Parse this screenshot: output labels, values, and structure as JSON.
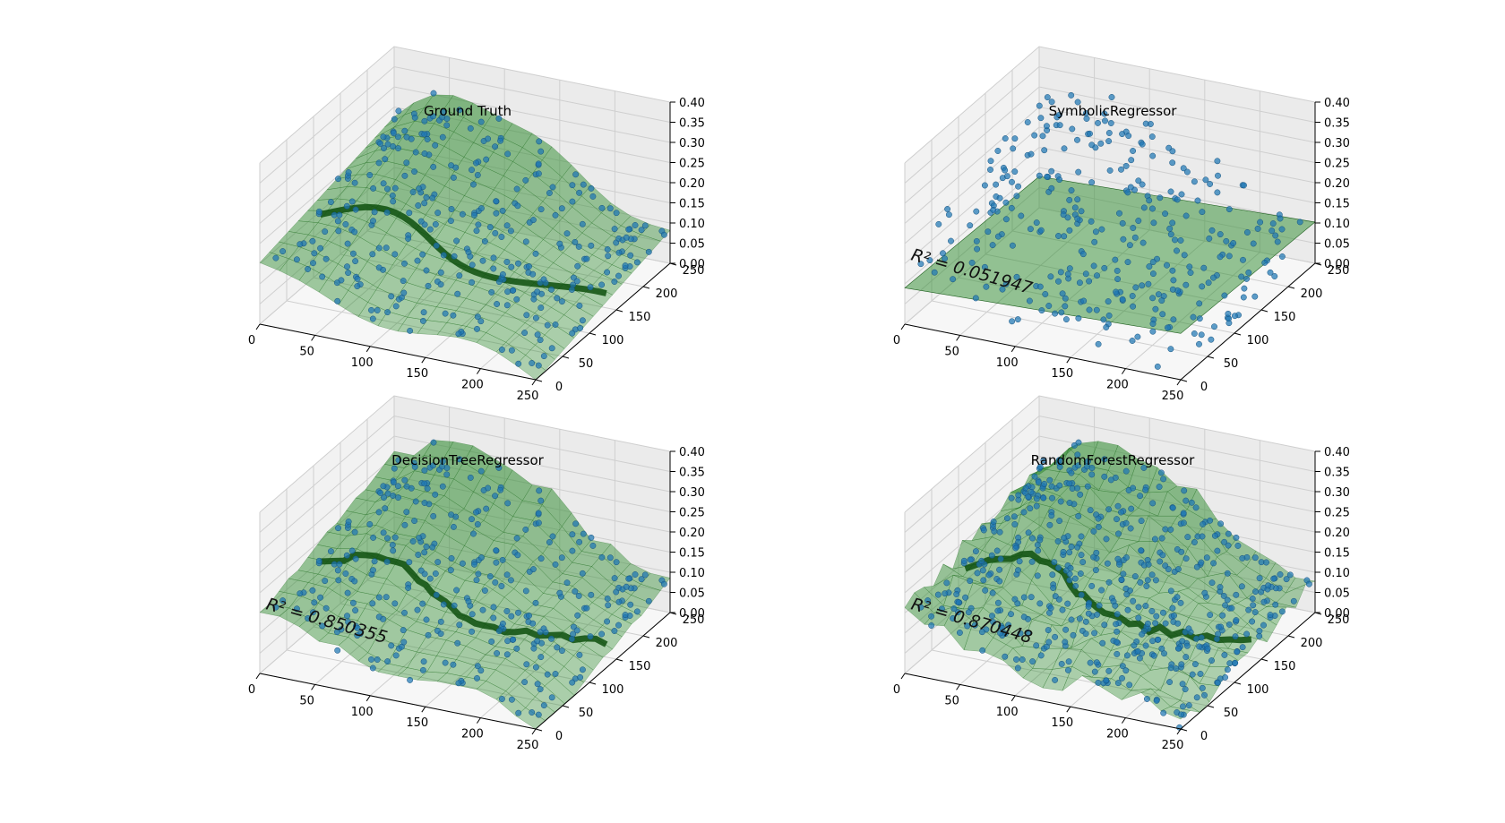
{
  "chart_data": [
    {
      "type": "scatter3d_surface",
      "title": "Ground Truth",
      "annotation": "",
      "x_ticks": [
        "0",
        "50",
        "100",
        "150",
        "200",
        "250"
      ],
      "y_ticks": [
        "0",
        "50",
        "100",
        "150",
        "200",
        "250"
      ],
      "z_ticks": [
        "0.00",
        "0.05",
        "0.10",
        "0.15",
        "0.20",
        "0.25",
        "0.30",
        "0.35",
        "0.40"
      ],
      "xlim": [
        0,
        250
      ],
      "ylim": [
        0,
        250
      ],
      "zlim": [
        0,
        0.4
      ],
      "grid": true,
      "surface_type": "smooth",
      "surface_color": "#2e8b2e",
      "point_color": "#1f77b4"
    },
    {
      "type": "scatter3d_surface",
      "title": "SymbolicRegressor",
      "annotation": "R² = 0.051947",
      "x_ticks": [
        "0",
        "50",
        "100",
        "150",
        "200",
        "250"
      ],
      "y_ticks": [
        "0",
        "50",
        "100",
        "150",
        "200",
        "250"
      ],
      "z_ticks": [
        "0.00",
        "0.05",
        "0.10",
        "0.15",
        "0.20",
        "0.25",
        "0.30",
        "0.35",
        "0.40"
      ],
      "xlim": [
        0,
        250
      ],
      "ylim": [
        0,
        250
      ],
      "zlim": [
        0,
        0.4
      ],
      "grid": true,
      "surface_type": "plane",
      "surface_color": "#2e8b2e",
      "point_color": "#1f77b4"
    },
    {
      "type": "scatter3d_surface",
      "title": "DecisionTreeRegressor",
      "annotation": "R² = 0.850355",
      "x_ticks": [
        "0",
        "50",
        "100",
        "150",
        "200",
        "250"
      ],
      "y_ticks": [
        "0",
        "50",
        "100",
        "150",
        "200",
        "250"
      ],
      "z_ticks": [
        "0.00",
        "0.05",
        "0.10",
        "0.15",
        "0.20",
        "0.25",
        "0.30",
        "0.35",
        "0.40"
      ],
      "xlim": [
        0,
        250
      ],
      "ylim": [
        0,
        250
      ],
      "zlim": [
        0,
        0.4
      ],
      "grid": true,
      "surface_type": "blocky",
      "surface_color": "#2e8b2e",
      "point_color": "#1f77b4"
    },
    {
      "type": "scatter3d_surface",
      "title": "RandomForestRegressor",
      "annotation": "R² = 0.870448",
      "x_ticks": [
        "0",
        "50",
        "100",
        "150",
        "200",
        "250"
      ],
      "y_ticks": [
        "0",
        "50",
        "100",
        "150",
        "200",
        "250"
      ],
      "z_ticks": [
        "0.00",
        "0.05",
        "0.10",
        "0.15",
        "0.20",
        "0.25",
        "0.30",
        "0.35",
        "0.40"
      ],
      "xlim": [
        0,
        250
      ],
      "ylim": [
        0,
        250
      ],
      "zlim": [
        0,
        0.4
      ],
      "grid": true,
      "surface_type": "jagged",
      "surface_color": "#2e8b2e",
      "point_color": "#1f77b4"
    }
  ]
}
